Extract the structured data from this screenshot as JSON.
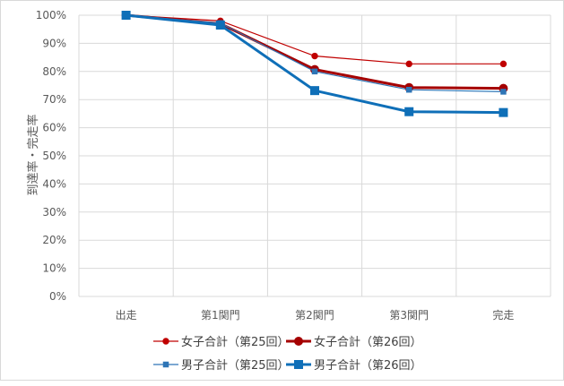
{
  "chart_data": {
    "type": "line",
    "categories": [
      "出走",
      "第1関門",
      "第2関門",
      "第3関門",
      "完走"
    ],
    "ylabel": "到達率・完走率",
    "ylim": [
      0,
      100
    ],
    "yticks": [
      "0%",
      "10%",
      "20%",
      "30%",
      "40%",
      "50%",
      "60%",
      "70%",
      "80%",
      "90%",
      "100%"
    ],
    "grid": true,
    "legend_position": "bottom",
    "series": [
      {
        "name": "女子合計（第25回）",
        "values": [
          100,
          98,
          85.5,
          82.7,
          82.7
        ],
        "color": "#c00000",
        "marker": "circle",
        "weight": "thin"
      },
      {
        "name": "女子合計（第26回）",
        "values": [
          100,
          97,
          80.7,
          74.3,
          74
        ],
        "color": "#a50000",
        "marker": "circle",
        "weight": "thick"
      },
      {
        "name": "男子合計（第25回）",
        "values": [
          100,
          97.2,
          80,
          73.5,
          72.8
        ],
        "color": "#2e75b6",
        "marker": "square",
        "weight": "thin"
      },
      {
        "name": "男子合計（第26回）",
        "values": [
          100,
          96.5,
          73.2,
          65.7,
          65.4
        ],
        "color": "#0f6fb8",
        "marker": "square",
        "weight": "thick"
      }
    ]
  }
}
